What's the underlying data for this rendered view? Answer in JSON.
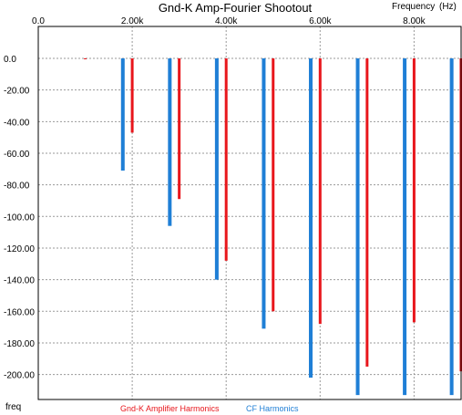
{
  "chart_data": {
    "type": "bar",
    "title": "Gnd-K Amp-Fourier Shootout",
    "xlabel": "Frequency",
    "xunit": "(Hz)",
    "ylabel": "freq",
    "xlim": [
      0,
      9000
    ],
    "ylim": [
      -216,
      0
    ],
    "grid": true,
    "x_ticks": [
      "0.0",
      "2.00k",
      "4.00k",
      "6.00k",
      "8.00k"
    ],
    "x_tick_values": [
      0,
      2000,
      4000,
      6000,
      8000
    ],
    "y_ticks": [
      "0.0",
      "-20.00",
      "-40.00",
      "-60.00",
      "-80.00",
      "-100.00",
      "-120.00",
      "-140.00",
      "-160.00",
      "-180.00",
      "-200.00"
    ],
    "y_tick_values": [
      0,
      -20,
      -40,
      -60,
      -80,
      -100,
      -120,
      -140,
      -160,
      -180,
      -200
    ],
    "series": [
      {
        "name": "Gnd-K Amplifier Harmonics",
        "color": "#e8161c",
        "x": [
          1000,
          2000,
          3000,
          4000,
          5000,
          6000,
          7000,
          8000,
          9000
        ],
        "values": [
          0,
          -47,
          -89,
          -128,
          -160,
          -168,
          -195,
          -167,
          -198
        ]
      },
      {
        "name": "CF Harmonics",
        "color": "#1f7fd6",
        "x": [
          1800,
          2800,
          3800,
          4800,
          5800,
          6800,
          7800,
          8800
        ],
        "values": [
          -71,
          -106,
          -140,
          -171,
          -202,
          -213,
          -213,
          -213
        ]
      }
    ]
  }
}
